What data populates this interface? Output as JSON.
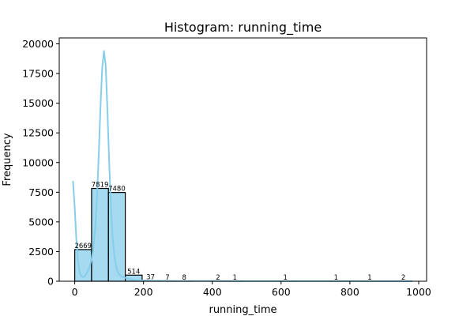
{
  "chart_data": {
    "type": "bar",
    "title": "Histogram: running_time",
    "xlabel": "running_time",
    "ylabel": "Frequency",
    "xlim": [
      -45,
      1023
    ],
    "ylim": [
      0,
      20500
    ],
    "xticks": [
      0,
      200,
      400,
      600,
      800,
      1000
    ],
    "xtick_labels": [
      "0",
      "200",
      "400",
      "600",
      "800",
      "1000"
    ],
    "yticks": [
      0,
      2500,
      5000,
      7500,
      10000,
      12500,
      15000,
      17500,
      20000
    ],
    "ytick_labels": [
      "0",
      "2500",
      "5000",
      "7500",
      "10000",
      "12500",
      "15000",
      "17500",
      "20000"
    ],
    "bin_edges": [
      0,
      49,
      98,
      147,
      196,
      245,
      294,
      343,
      392,
      441,
      490,
      539,
      588,
      637,
      686,
      735,
      784,
      833,
      882,
      931,
      980
    ],
    "values": [
      2669,
      7819,
      7480,
      514,
      37,
      7,
      8,
      0,
      2,
      1,
      0,
      0,
      1,
      0,
      0,
      1,
      0,
      1,
      0,
      2
    ],
    "value_labels": [
      "2669",
      "7819",
      "7480",
      "514",
      "37",
      "7",
      "8",
      "",
      "2",
      "1",
      "",
      "",
      "1",
      "",
      "",
      "1",
      "",
      "1",
      "",
      "2"
    ],
    "kde": {
      "x": [
        -5,
        0,
        5,
        10,
        15,
        20,
        25,
        30,
        35,
        40,
        45,
        50,
        55,
        60,
        65,
        70,
        75,
        80,
        85,
        90,
        95,
        100,
        105,
        110,
        115,
        120,
        125,
        130,
        140,
        150,
        160,
        170,
        180,
        200,
        220,
        250,
        300,
        400,
        500,
        600,
        700,
        800,
        900,
        980
      ],
      "y": [
        8400,
        6200,
        3400,
        1500,
        700,
        400,
        350,
        450,
        700,
        1000,
        1400,
        2000,
        3000,
        4700,
        7200,
        10800,
        14800,
        18000,
        19400,
        18200,
        14500,
        10200,
        6500,
        3800,
        2200,
        1300,
        800,
        550,
        350,
        250,
        180,
        130,
        100,
        70,
        50,
        30,
        20,
        15,
        10,
        8,
        6,
        5,
        4,
        3
      ]
    },
    "bar_color": "#87ceeb",
    "kde_color": "#87ceeb",
    "edge_color": "#000000",
    "grid": false,
    "legend": "none"
  }
}
